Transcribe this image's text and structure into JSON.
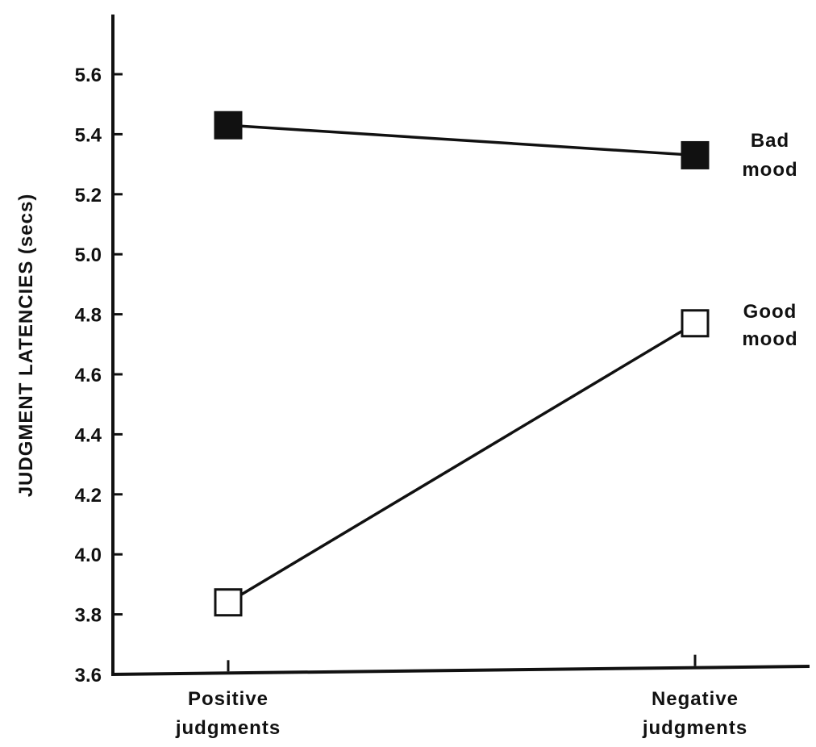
{
  "chart_data": {
    "type": "line",
    "title": "",
    "ylabel": "JUDGMENT LATENCIES (secs)",
    "xlabel": "",
    "ylim": [
      3.6,
      5.8
    ],
    "yticks": [
      "3.6",
      "3.8",
      "4.0",
      "4.2",
      "4.4",
      "4.6",
      "4.8",
      "5.0",
      "5.2",
      "5.4",
      "5.6"
    ],
    "categories": [
      {
        "line1": "Positive",
        "line2": "judgments"
      },
      {
        "line1": "Negative",
        "line2": "judgments"
      }
    ],
    "series": [
      {
        "name_line1": "Bad",
        "name_line2": "mood",
        "values": [
          5.43,
          5.33
        ],
        "marker": "filled-square",
        "color": "#111111"
      },
      {
        "name_line1": "Good",
        "name_line2": "mood",
        "values": [
          3.84,
          4.77
        ],
        "marker": "open-square",
        "color": "#111111"
      }
    ],
    "grid": false,
    "legend": "inline-right"
  }
}
